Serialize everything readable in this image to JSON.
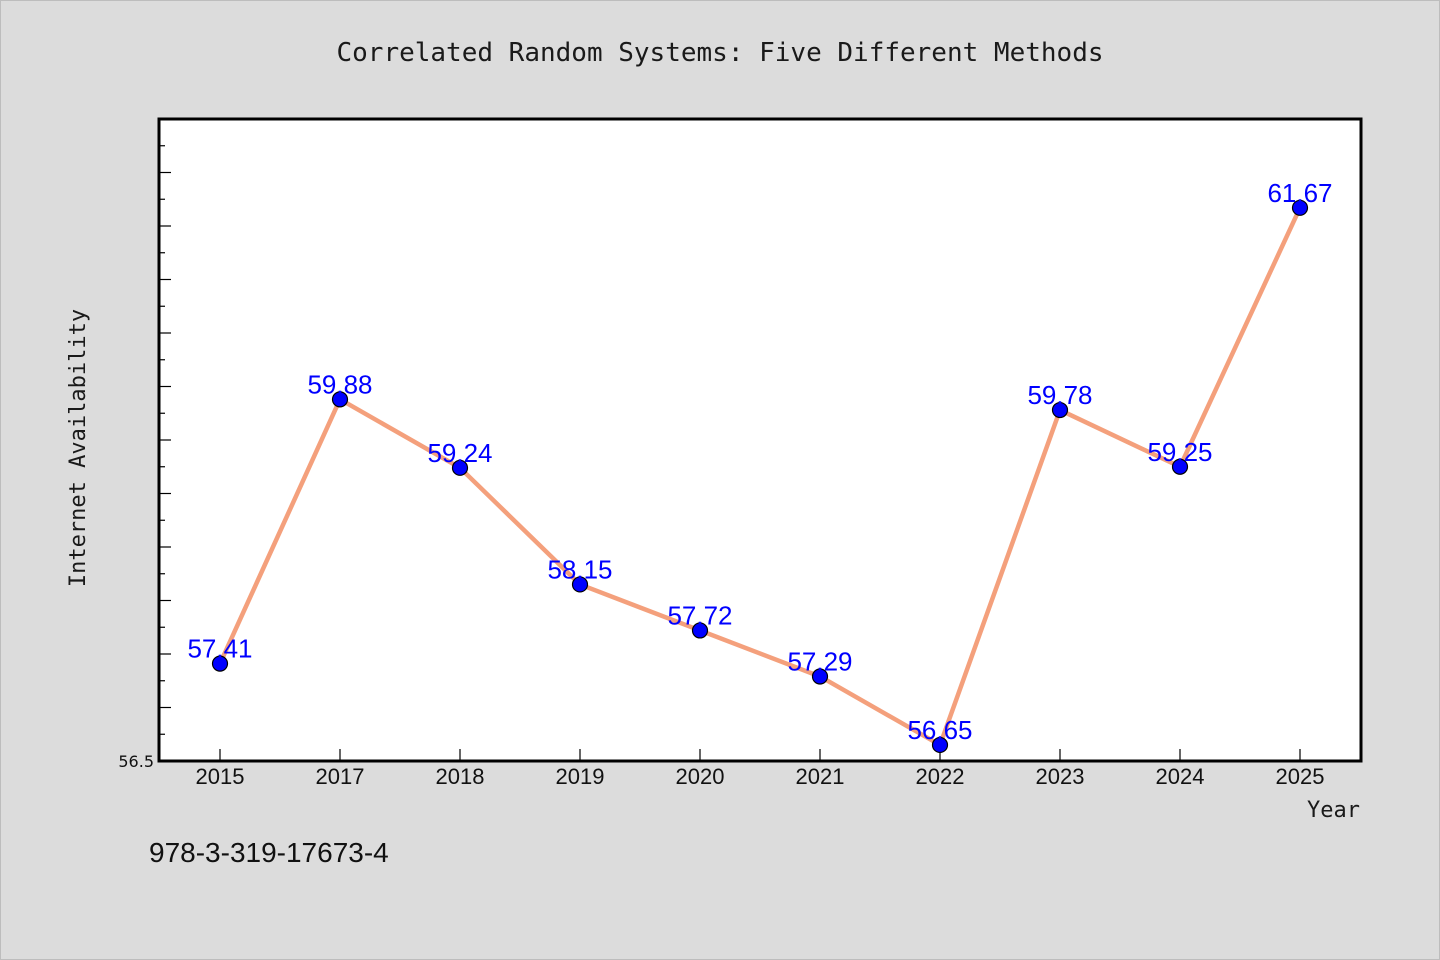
{
  "chart_data": {
    "type": "line",
    "title": "Correlated Random Systems: Five Different Methods",
    "xlabel": "Year",
    "ylabel": "Internet Availability",
    "categories": [
      "2015",
      "2017",
      "2018",
      "2019",
      "2020",
      "2021",
      "2022",
      "2023",
      "2024",
      "2025"
    ],
    "series": [
      {
        "values": [
          57.41,
          59.88,
          59.24,
          58.15,
          57.72,
          57.29,
          56.65,
          59.78,
          59.25,
          61.67
        ],
        "labels": [
          "57.41",
          "59.88",
          "59.24",
          "58.15",
          "57.72",
          "57.29",
          "56.65",
          "59.78",
          "59.25",
          "61.67"
        ],
        "line_color": "#f4a07c",
        "marker_color": "#0000ff"
      }
    ],
    "ylim": [
      56.5,
      62.5
    ],
    "yticks_labeled": [
      "56.5"
    ],
    "grid": false,
    "legend": "none"
  },
  "footer": {
    "isbn": "978-3-319-17673-4"
  },
  "colors": {
    "background": "#dcdcdc",
    "plot_area": "#ffffff",
    "axis": "#000000",
    "data_label": "#0000ff"
  }
}
